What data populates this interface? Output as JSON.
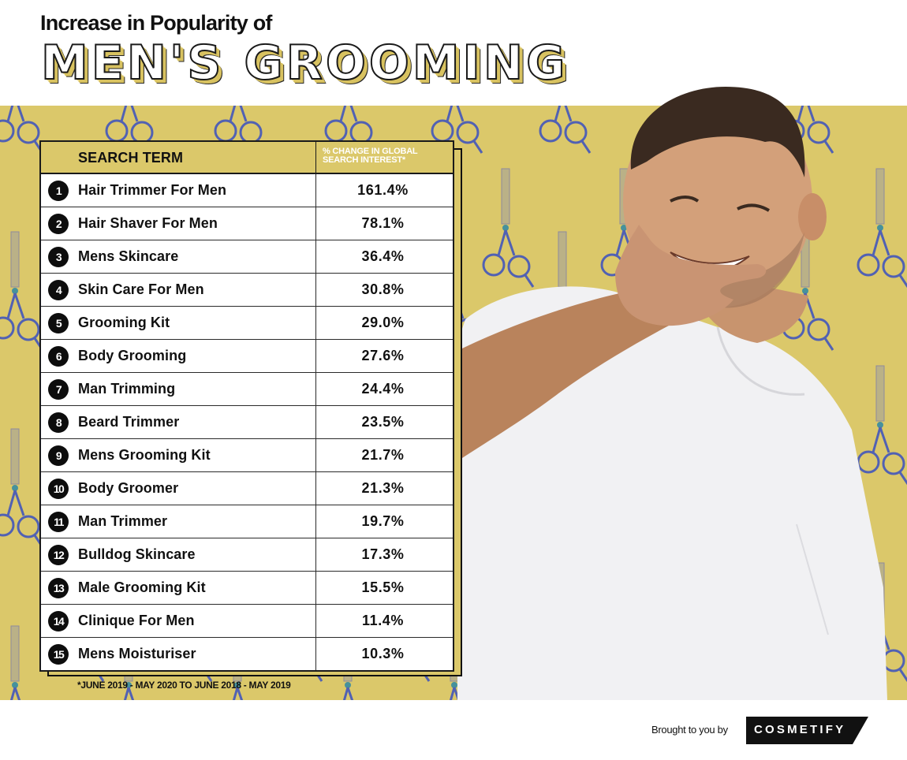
{
  "header": {
    "subtitle": "Increase in Popularity of",
    "title": "MEN'S GROOMING"
  },
  "colors": {
    "background_band": "#dbc86a",
    "table_header": "#dbc86a",
    "badge": "#0d0d0d",
    "scissors": "#4a5cb8"
  },
  "table": {
    "columns": [
      "SEARCH TERM",
      "% CHANGE IN GLOBAL SEARCH INTEREST*"
    ],
    "rows": [
      {
        "rank": "1",
        "term": "Hair Trimmer For Men",
        "change": "161.4%"
      },
      {
        "rank": "2",
        "term": "Hair Shaver For Men",
        "change": "78.1%"
      },
      {
        "rank": "3",
        "term": "Mens Skincare",
        "change": "36.4%"
      },
      {
        "rank": "4",
        "term": "Skin Care For Men",
        "change": "30.8%"
      },
      {
        "rank": "5",
        "term": "Grooming Kit",
        "change": "29.0%"
      },
      {
        "rank": "6",
        "term": "Body Grooming",
        "change": "27.6%"
      },
      {
        "rank": "7",
        "term": "Man Trimming",
        "change": "24.4%"
      },
      {
        "rank": "8",
        "term": "Beard Trimmer",
        "change": "23.5%"
      },
      {
        "rank": "9",
        "term": "Mens Grooming Kit",
        "change": "21.7%"
      },
      {
        "rank": "10",
        "term": "Body Groomer",
        "change": "21.3%"
      },
      {
        "rank": "11",
        "term": "Man Trimmer",
        "change": "19.7%"
      },
      {
        "rank": "12",
        "term": "Bulldog Skincare",
        "change": "17.3%"
      },
      {
        "rank": "13",
        "term": "Male Grooming Kit",
        "change": "15.5%"
      },
      {
        "rank": "14",
        "term": "Clinique For Men",
        "change": "11.4%"
      },
      {
        "rank": "15",
        "term": "Mens Moisturiser",
        "change": "10.3%"
      }
    ],
    "footnote": "*JUNE 2019 - MAY 2020 TO JUNE 2018 - MAY 2019"
  },
  "footer": {
    "brought_by": "Brought to you by",
    "brand": "COSMETIFY"
  },
  "chart_data": {
    "type": "table",
    "title": "Increase in Popularity of Men's Grooming",
    "columns": [
      "Rank",
      "Search Term",
      "% Change in Global Search Interest*"
    ],
    "categories": [
      "Hair Trimmer For Men",
      "Hair Shaver For Men",
      "Mens Skincare",
      "Skin Care For Men",
      "Grooming Kit",
      "Body Grooming",
      "Man Trimming",
      "Beard Trimmer",
      "Mens Grooming Kit",
      "Body Groomer",
      "Man Trimmer",
      "Bulldog Skincare",
      "Male Grooming Kit",
      "Clinique For Men",
      "Mens Moisturiser"
    ],
    "values": [
      161.4,
      78.1,
      36.4,
      30.8,
      29.0,
      27.6,
      24.4,
      23.5,
      21.7,
      21.3,
      19.7,
      17.3,
      15.5,
      11.4,
      10.3
    ],
    "unit": "%",
    "annotation": "*June 2019 - May 2020 to June 2018 - May 2019",
    "source_credit": "Brought to you by Cosmetify"
  }
}
